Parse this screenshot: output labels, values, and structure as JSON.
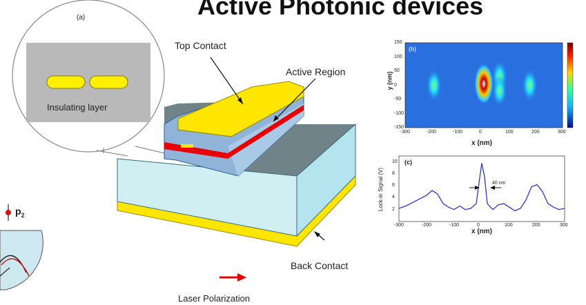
{
  "title": "Active Photonic devices",
  "inset_a": {
    "panel_label": "(a)",
    "layer_label": "Insulating layer"
  },
  "device": {
    "top_contact": "Top Contact",
    "active_region": "Active Region",
    "back_contact": "Back Contact",
    "laser_polarization": "Laser Polarization"
  },
  "left_fragment": {
    "label_main": "p",
    "label_sub": "2"
  },
  "panel_b": {
    "panel_label": "(b)",
    "ylabel": "y (nm)",
    "xlabel": "x (nm)",
    "xticks": [
      "-300",
      "-200",
      "-100",
      "0",
      "100",
      "200",
      "300"
    ],
    "yticks": [
      "150",
      "100",
      "50",
      "0",
      "-50",
      "-100",
      "-150"
    ]
  },
  "panel_c": {
    "panel_label": "(c)",
    "ylabel": "Lock-in Signal (V)",
    "xlabel": "x (nm)",
    "annotation": "40 nm",
    "xticks": [
      "-300",
      "-200",
      "-100",
      "0",
      "100",
      "200",
      "300"
    ],
    "yticks": [
      "10",
      "8",
      "6",
      "4",
      "2"
    ]
  },
  "chart_data": [
    {
      "type": "heatmap",
      "xlabel": "x (nm)",
      "ylabel": "y (nm)",
      "xlim": [
        -300,
        300
      ],
      "ylim": [
        -150,
        150
      ],
      "spots": [
        {
          "x": -190,
          "y": 0,
          "intensity": 0.55
        },
        {
          "x": 0,
          "y": 5,
          "intensity": 1.0
        },
        {
          "x": 60,
          "y": 30,
          "intensity": 0.6
        },
        {
          "x": 60,
          "y": -20,
          "intensity": 0.5
        },
        {
          "x": 175,
          "y": 0,
          "intensity": 0.6
        }
      ]
    },
    {
      "type": "line",
      "xlabel": "x (nm)",
      "ylabel": "Lock-in Signal (V)",
      "xlim": [
        -300,
        300
      ],
      "ylim": [
        0,
        11
      ],
      "x": [
        -300,
        -275,
        -250,
        -225,
        -200,
        -180,
        -160,
        -140,
        -120,
        -100,
        -80,
        -60,
        -40,
        -20,
        -10,
        0,
        10,
        20,
        40,
        60,
        80,
        100,
        120,
        140,
        160,
        180,
        200,
        220,
        240,
        260,
        280,
        300
      ],
      "y": [
        2.2,
        2.6,
        3.2,
        3.8,
        4.4,
        5.2,
        4.6,
        3.0,
        2.4,
        2.0,
        2.6,
        2.0,
        2.2,
        3.0,
        6.5,
        9.8,
        7.5,
        3.0,
        2.0,
        2.8,
        3.0,
        2.4,
        1.8,
        2.2,
        3.6,
        5.8,
        6.2,
        5.0,
        3.0,
        2.4,
        2.0,
        2.2
      ]
    }
  ]
}
